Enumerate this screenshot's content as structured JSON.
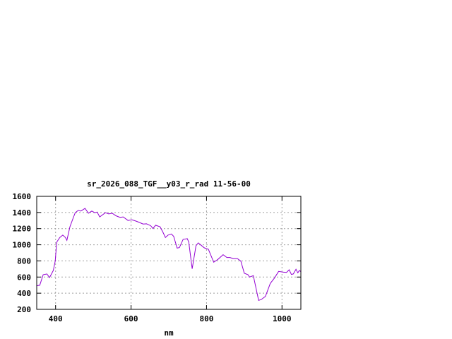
{
  "chart_data": {
    "type": "line",
    "title": "sr_2026_088_TGF__y03_r_rad 11-56-00",
    "xlabel": "nm",
    "ylabel": "",
    "xlim": [
      350,
      1050
    ],
    "ylim": [
      200,
      1600
    ],
    "xticks": [
      400,
      600,
      800,
      1000
    ],
    "yticks": [
      200,
      400,
      600,
      800,
      1000,
      1200,
      1400,
      1600
    ],
    "grid": true,
    "line_color": "#9400d3",
    "series": [
      {
        "x": [
          350,
          358,
          367,
          377,
          384,
          394,
          399,
          403,
          411,
          419,
          426,
          430,
          438,
          446,
          452,
          460,
          467,
          478,
          487,
          496,
          504,
          510,
          517,
          532,
          541,
          550,
          560,
          571,
          579,
          592,
          602,
          612,
          617,
          632,
          641,
          652,
          658,
          665,
          677,
          685,
          691,
          698,
          707,
          713,
          722,
          728,
          738,
          749,
          753,
          762,
          772,
          778,
          786,
          794,
          805,
          819,
          830,
          844,
          854,
          862,
          871,
          882,
          891,
          900,
          910,
          914,
          924,
          938,
          945,
          956,
          969,
          980,
          991,
          1002,
          1012,
          1019,
          1025,
          1030,
          1037,
          1042,
          1046,
          1050
        ],
        "y": [
          492,
          498,
          629,
          638,
          594,
          682,
          798,
          1032,
          1090,
          1120,
          1090,
          1055,
          1222,
          1324,
          1397,
          1426,
          1418,
          1450,
          1391,
          1418,
          1397,
          1406,
          1345,
          1397,
          1382,
          1391,
          1359,
          1339,
          1345,
          1301,
          1310,
          1295,
          1286,
          1257,
          1260,
          1236,
          1201,
          1242,
          1222,
          1150,
          1090,
          1120,
          1134,
          1105,
          959,
          965,
          1067,
          1076,
          1032,
          702,
          988,
          1023,
          994,
          962,
          944,
          784,
          819,
          877,
          842,
          842,
          828,
          828,
          798,
          647,
          629,
          600,
          617,
          311,
          322,
          360,
          521,
          588,
          670,
          661,
          658,
          690,
          632,
          638,
          696,
          652,
          681,
          667
        ]
      }
    ]
  }
}
